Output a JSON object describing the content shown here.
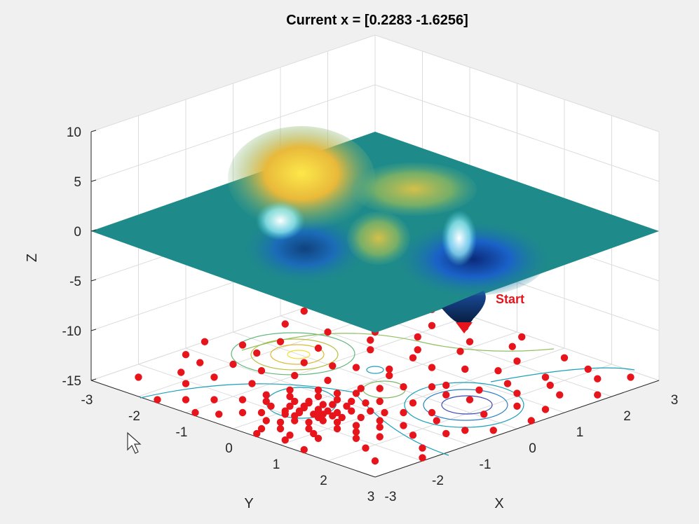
{
  "window": {
    "title": "Current x = [0.2283 -1.6256]"
  },
  "colors": {
    "background": "#f0f0f0",
    "axes_box": "#ffffff",
    "grid": "#dcdcdc",
    "axis_line": "#262626",
    "points": "#e8141c",
    "surface_base": "#1e8a8a",
    "start_label": "#e8141c"
  },
  "chart_data": {
    "type": "scatter",
    "title": "Current x = [0.2283 -1.6256]",
    "xlabel": "X",
    "ylabel": "Y",
    "zlabel": "Z",
    "xlim": [
      -3,
      3
    ],
    "ylim": [
      -3,
      3
    ],
    "zlim": [
      -15,
      10
    ],
    "x_ticks": [
      "-3",
      "-2",
      "-1",
      "0",
      "1",
      "2",
      "3"
    ],
    "y_ticks": [
      "-3",
      "-2",
      "-1",
      "0",
      "1",
      "2",
      "3"
    ],
    "z_ticks": [
      "-15",
      "-10",
      "-5",
      "0",
      "5",
      "10"
    ],
    "grid": true,
    "colormap": "parula",
    "surface": "peaks",
    "annotation": {
      "text": "Start",
      "x": 0.2283,
      "y": -1.6256
    },
    "series": [
      {
        "name": "",
        "points": [
          [
            0.1,
            -1.6
          ],
          [
            0.3,
            -1.5
          ],
          [
            0.2,
            -1.8
          ],
          [
            0.4,
            -1.7
          ],
          [
            0.0,
            -1.4
          ],
          [
            0.5,
            -1.6
          ],
          [
            0.1,
            -2.0
          ],
          [
            0.3,
            -1.2
          ],
          [
            0.6,
            -1.4
          ],
          [
            -0.1,
            -1.7
          ],
          [
            0.2,
            -1.3
          ],
          [
            0.7,
            -1.8
          ],
          [
            0.4,
            -2.1
          ],
          [
            0.0,
            -1.9
          ],
          [
            0.8,
            -1.5
          ],
          [
            -0.2,
            -1.5
          ],
          [
            0.5,
            -1.1
          ],
          [
            0.9,
            -1.7
          ],
          [
            0.3,
            -2.3
          ],
          [
            -0.3,
            -1.9
          ],
          [
            0.6,
            -2.0
          ],
          [
            1.0,
            -1.3
          ],
          [
            0.2,
            -1.0
          ],
          [
            -0.4,
            -1.4
          ],
          [
            0.7,
            -1.2
          ],
          [
            1.1,
            -1.9
          ],
          [
            0.1,
            -2.4
          ],
          [
            0.8,
            -2.2
          ],
          [
            -0.1,
            -1.1
          ],
          [
            0.4,
            -0.9
          ],
          [
            1.2,
            -1.6
          ],
          [
            -0.5,
            -1.8
          ],
          [
            0.9,
            -1.0
          ],
          [
            0.5,
            -2.5
          ],
          [
            1.3,
            -1.2
          ],
          [
            -0.2,
            -2.2
          ],
          [
            0.6,
            -0.8
          ],
          [
            1.0,
            -2.3
          ],
          [
            -0.6,
            -1.2
          ],
          [
            0.3,
            -2.7
          ],
          [
            1.4,
            -1.8
          ],
          [
            0.0,
            -0.8
          ],
          [
            1.1,
            -0.9
          ],
          [
            -0.4,
            -2.4
          ],
          [
            0.8,
            -2.6
          ],
          [
            1.5,
            -1.4
          ],
          [
            -0.7,
            -1.6
          ],
          [
            0.2,
            -0.6
          ],
          [
            1.2,
            -2.4
          ],
          [
            0.7,
            -0.6
          ],
          [
            -0.3,
            -0.9
          ],
          [
            1.6,
            -2.0
          ],
          [
            0.4,
            -2.9
          ],
          [
            1.3,
            -0.7
          ],
          [
            -0.8,
            -2.0
          ],
          [
            1.7,
            -1.1
          ],
          [
            -0.6,
            -2.7
          ],
          [
            0.9,
            -2.8
          ],
          [
            0.1,
            -0.4
          ],
          [
            1.8,
            -1.7
          ],
          [
            1.9,
            -0.6
          ],
          [
            2.1,
            -1.3
          ],
          [
            2.4,
            -0.9
          ],
          [
            2.0,
            -2.2
          ],
          [
            2.6,
            -1.6
          ],
          [
            2.2,
            0.1
          ],
          [
            2.8,
            -0.3
          ],
          [
            2.5,
            -2.5
          ],
          [
            1.6,
            0.4
          ],
          [
            2.9,
            -1.9
          ],
          [
            2.3,
            0.7
          ],
          [
            1.4,
            -2.9
          ],
          [
            2.7,
            0.9
          ],
          [
            1.9,
            1.1
          ],
          [
            -1.0,
            -0.7
          ],
          [
            -1.2,
            -1.4
          ],
          [
            -1.5,
            -0.9
          ],
          [
            -1.1,
            -2.3
          ],
          [
            -1.8,
            -1.6
          ],
          [
            -1.4,
            -2.6
          ],
          [
            -2.0,
            -1.0
          ],
          [
            -1.7,
            -2.9
          ],
          [
            -2.3,
            -1.8
          ],
          [
            -1.3,
            -0.2
          ],
          [
            -2.6,
            -2.4
          ],
          [
            -0.9,
            -2.9
          ],
          [
            -2.1,
            -0.4
          ],
          [
            -2.8,
            -1.2
          ],
          [
            -0.6,
            0.2
          ],
          [
            -0.2,
            0.5
          ],
          [
            0.5,
            0.1
          ],
          [
            0.9,
            0.6
          ],
          [
            -1.0,
            0.9
          ],
          [
            0.2,
            1.0
          ],
          [
            1.2,
            0.3
          ],
          [
            -1.6,
            0.4
          ],
          [
            0.6,
            1.3
          ],
          [
            -0.5,
            1.4
          ],
          [
            1.0,
            1.6
          ],
          [
            0.0,
            1.8
          ],
          [
            -1.3,
            1.2
          ],
          [
            1.5,
            1.3
          ],
          [
            -2.2,
            0.2
          ],
          [
            -2.5,
            -0.3
          ],
          [
            -2.0,
            1.0
          ],
          [
            -2.7,
            0.8
          ],
          [
            -1.8,
            1.9
          ],
          [
            -2.9,
            1.4
          ],
          [
            -1.1,
            2.3
          ],
          [
            -2.4,
            2.1
          ],
          [
            -0.7,
            2.6
          ],
          [
            -1.6,
            2.8
          ],
          [
            -0.2,
            2.2
          ],
          [
            0.4,
            2.5
          ],
          [
            0.9,
            2.1
          ],
          [
            -2.9,
            2.9
          ],
          [
            -2.2,
            2.7
          ],
          [
            1.3,
            2.7
          ],
          [
            0.2,
            2.9
          ],
          [
            1.7,
            1.9
          ],
          [
            2.0,
            1.7
          ],
          [
            2.4,
            1.5
          ],
          [
            2.8,
            1.9
          ],
          [
            2.3,
            2.4
          ],
          [
            1.9,
            2.6
          ],
          [
            2.6,
            2.8
          ],
          [
            -0.9,
            1.8
          ],
          [
            -1.5,
            1.5
          ],
          [
            -0.3,
            1.1
          ],
          [
            0.8,
            0.4
          ],
          [
            -2.6,
            1.7
          ],
          [
            -1.9,
            2.4
          ],
          [
            0.0,
            0.3
          ],
          [
            -0.9,
            0.0
          ],
          [
            1.4,
            0.8
          ],
          [
            2.9,
            0.4
          ],
          [
            -3.0,
            -0.6
          ],
          [
            -2.4,
            -1.3
          ],
          [
            -1.9,
            -2.1
          ],
          [
            -0.5,
            -0.5
          ],
          [
            0.3,
            -0.2
          ],
          [
            1.1,
            -0.3
          ],
          [
            1.6,
            -0.4
          ],
          [
            2.5,
            -0.6
          ],
          [
            0.35,
            -1.55
          ],
          [
            0.15,
            -1.75
          ],
          [
            0.45,
            -1.45
          ],
          [
            0.05,
            -1.55
          ],
          [
            0.25,
            -1.95
          ],
          [
            0.55,
            -1.75
          ],
          [
            -0.05,
            -1.35
          ],
          [
            0.65,
            -1.55
          ]
        ]
      }
    ]
  }
}
